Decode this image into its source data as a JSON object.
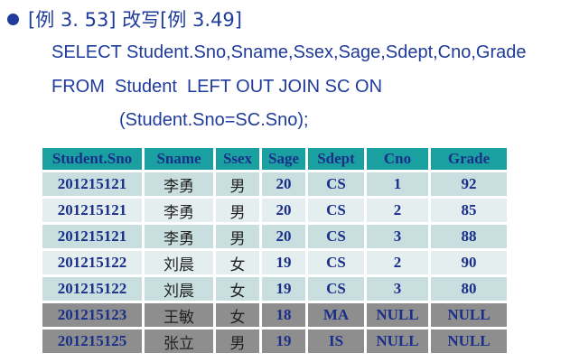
{
  "heading": "[例 3. 53] 改写[例 3.49]",
  "sql": {
    "line1": "SELECT Student.Sno,Sname,Ssex,Sage,Sdept,Cno,Grade",
    "line2": "FROM  Student  LEFT OUT JOIN SC ON",
    "line3": "(Student.Sno=SC.Sno);"
  },
  "table": {
    "headers": [
      "Student.Sno",
      "Sname",
      "Ssex",
      "Sage",
      "Sdept",
      "Cno",
      "Grade"
    ],
    "rows": [
      [
        "201215121",
        "李勇",
        "男",
        "20",
        "CS",
        "1",
        "92"
      ],
      [
        "201215121",
        "李勇",
        "男",
        "20",
        "CS",
        "2",
        "85"
      ],
      [
        "201215121",
        "李勇",
        "男",
        "20",
        "CS",
        "3",
        "88"
      ],
      [
        "201215122",
        "刘晨",
        "女",
        "19",
        "CS",
        "2",
        "90"
      ],
      [
        "201215122",
        "刘晨",
        "女",
        "19",
        "CS",
        "3",
        "80"
      ],
      [
        "201215123",
        "王敏",
        "女",
        "18",
        "MA",
        "NULL",
        "NULL"
      ],
      [
        "201215125",
        "张立",
        "男",
        "19",
        "IS",
        "NULL",
        "NULL"
      ]
    ]
  },
  "colors": {
    "text": "#1f3b9c",
    "header_bg": "#1aa0a0",
    "row_light": "#e4eeee",
    "row_dark": "#c9dede",
    "row_null": "#8e8e8e"
  }
}
